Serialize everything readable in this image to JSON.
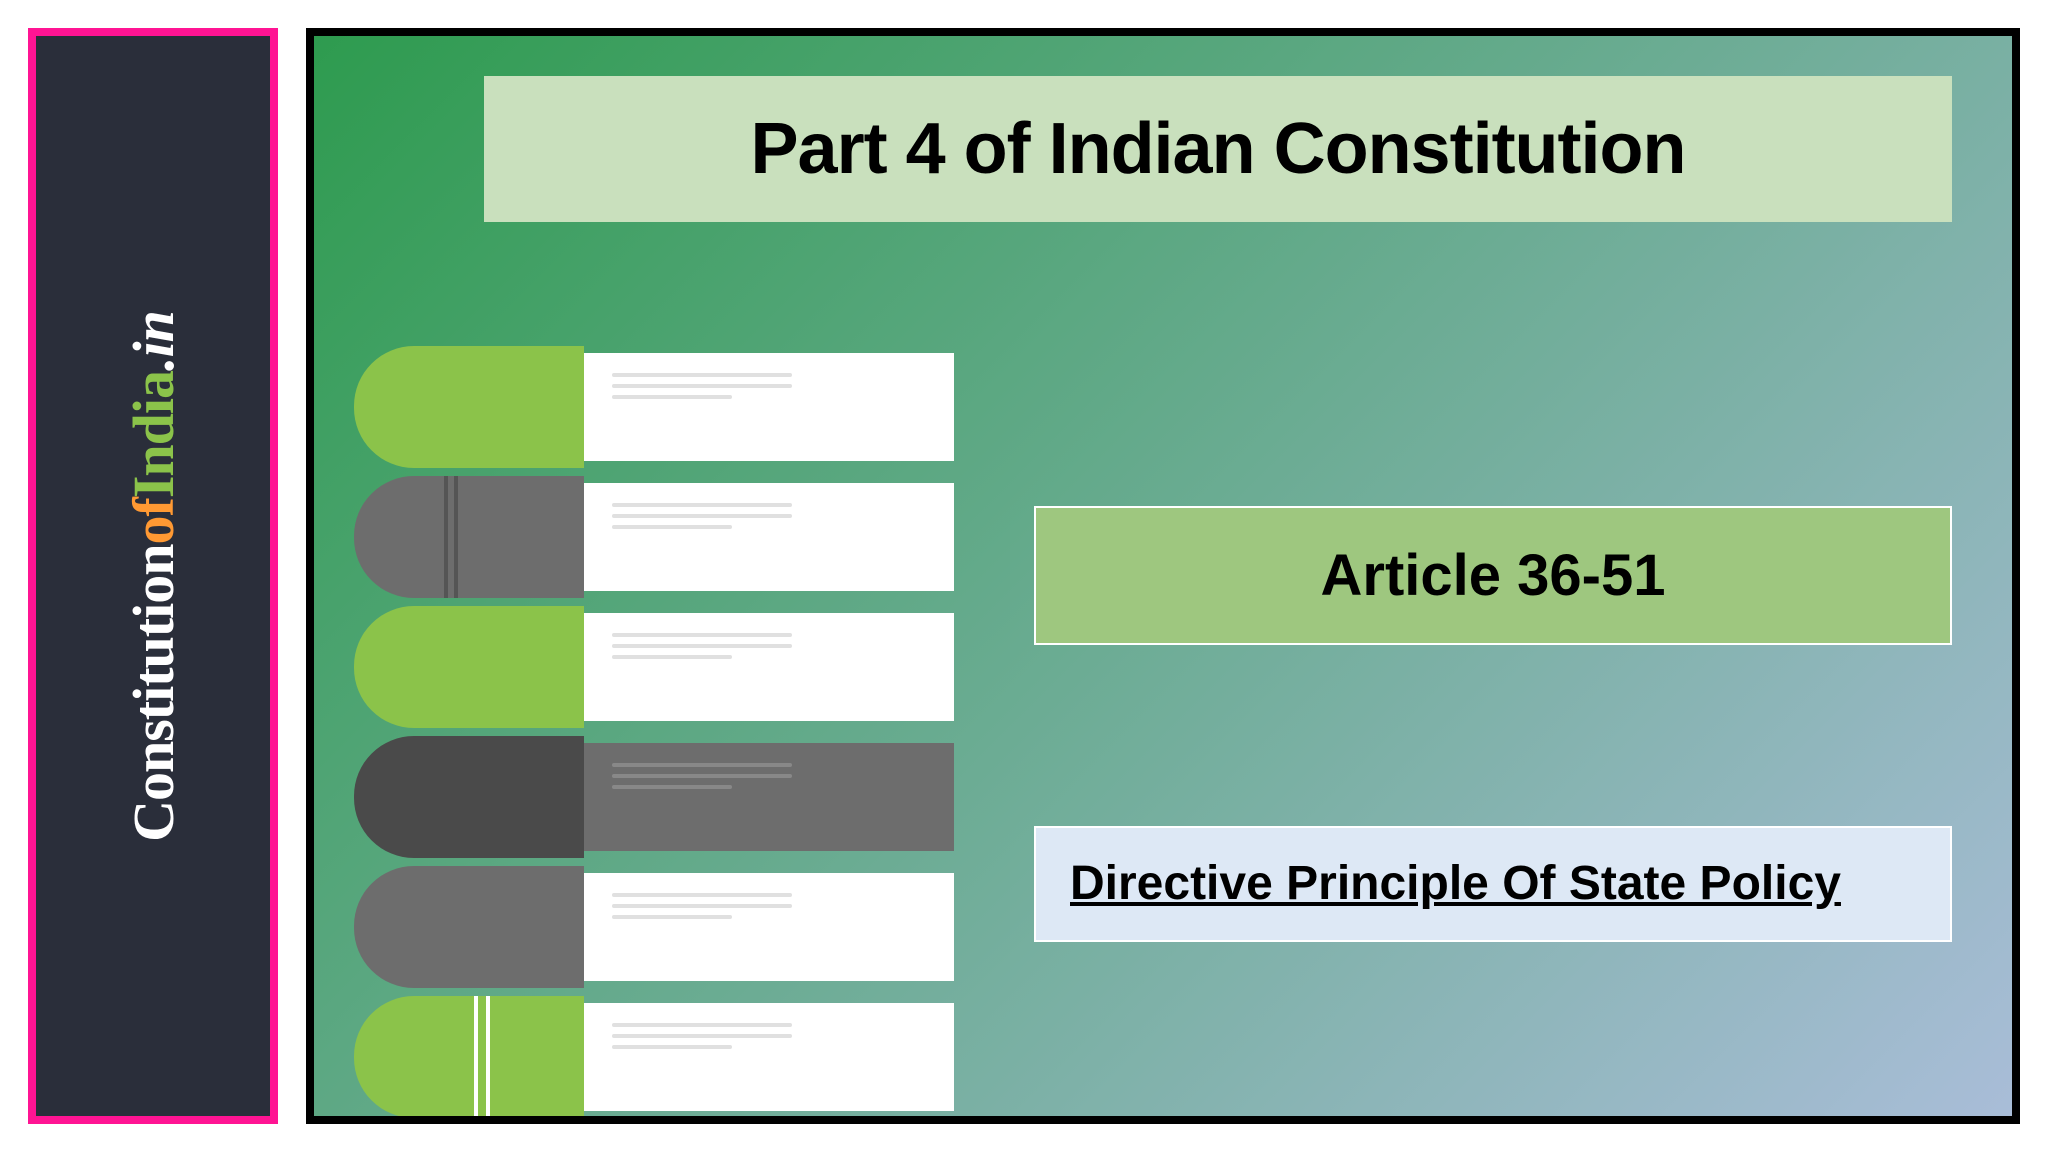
{
  "sidebar": {
    "bg_color": "#2a2e3a",
    "border_color": "#ff1493",
    "segments": {
      "constitution": {
        "text": "Constitution",
        "color": "#ffffff"
      },
      "of": {
        "text": "of",
        "color": "#ff9933"
      },
      "india": {
        "text": "India",
        "color": "#8bc34a"
      },
      "dot_in": {
        "text": ".in",
        "color": "#ffffff"
      }
    }
  },
  "main": {
    "gradient_start": "#2e9b4f",
    "gradient_end": "#a9bdd8",
    "title": {
      "text": "Part 4 of Indian Constitution",
      "bg_color": "#c9e0bd",
      "text_color": "#000000"
    },
    "article": {
      "text": "Article 36-51",
      "bg_color": "#9ec77f",
      "text_color": "#000000"
    },
    "dpsp": {
      "text": "Directive Principle Of State Policy",
      "bg_color": "#dde8f5",
      "text_color": "#000000"
    }
  },
  "books": [
    {
      "spine": "#8bc34a",
      "pages": "#ffffff",
      "line_color": "#e0e0e0",
      "stripes": []
    },
    {
      "spine": "#6d6d6d",
      "pages": "#ffffff",
      "line_color": "#e0e0e0",
      "stripes": [
        "dbl"
      ]
    },
    {
      "spine": "#8bc34a",
      "pages": "#ffffff",
      "line_color": "#e0e0e0",
      "stripes": []
    },
    {
      "spine": "#4a4a4a",
      "pages": "#6d6d6d",
      "line_color": "#888888",
      "stripes": []
    },
    {
      "spine": "#6d6d6d",
      "pages": "#ffffff",
      "line_color": "#e0e0e0",
      "stripes": []
    },
    {
      "spine": "#8bc34a",
      "pages": "#ffffff",
      "line_color": "#e0e0e0",
      "stripes": [
        "dbl-white"
      ]
    }
  ]
}
